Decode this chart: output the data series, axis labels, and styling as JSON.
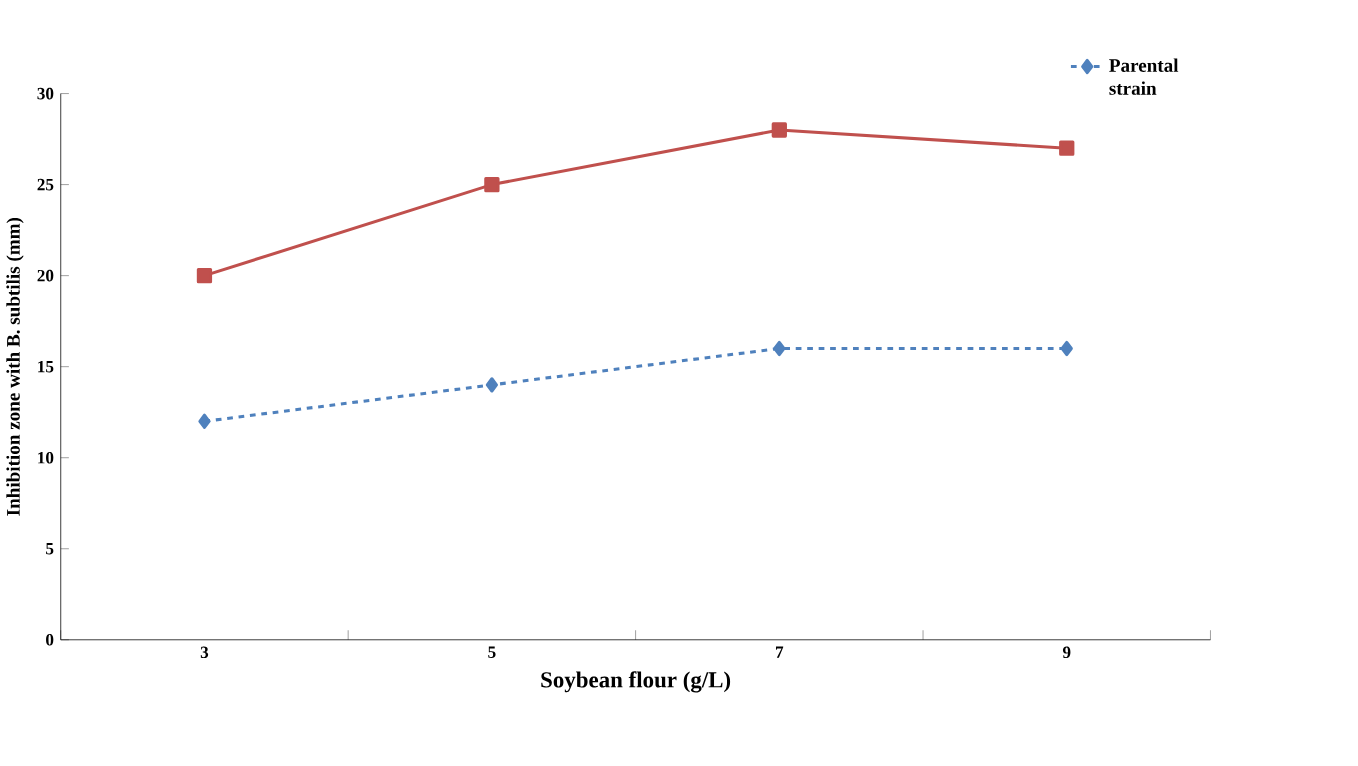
{
  "chart_data": {
    "type": "line",
    "xlabel": "Soybean flour (g/L)",
    "ylabel": "Inhibition zone with B. subtilis (mm)",
    "categories": [
      "3",
      "5",
      "7",
      "9"
    ],
    "ylim": [
      0,
      30
    ],
    "yticks": [
      0,
      5,
      10,
      15,
      20,
      25,
      30
    ],
    "legend": "top right",
    "series": [
      {
        "color": "#4f81bd",
        "values": [
          12,
          14,
          16,
          16
        ],
        "marker": "diamond",
        "line_style": "dashed",
        "name": "Parental strain"
      },
      {
        "color": "#c0504d",
        "values": [
          20,
          25,
          28,
          27
        ],
        "marker": "square",
        "line_style": "solid"
      }
    ]
  }
}
